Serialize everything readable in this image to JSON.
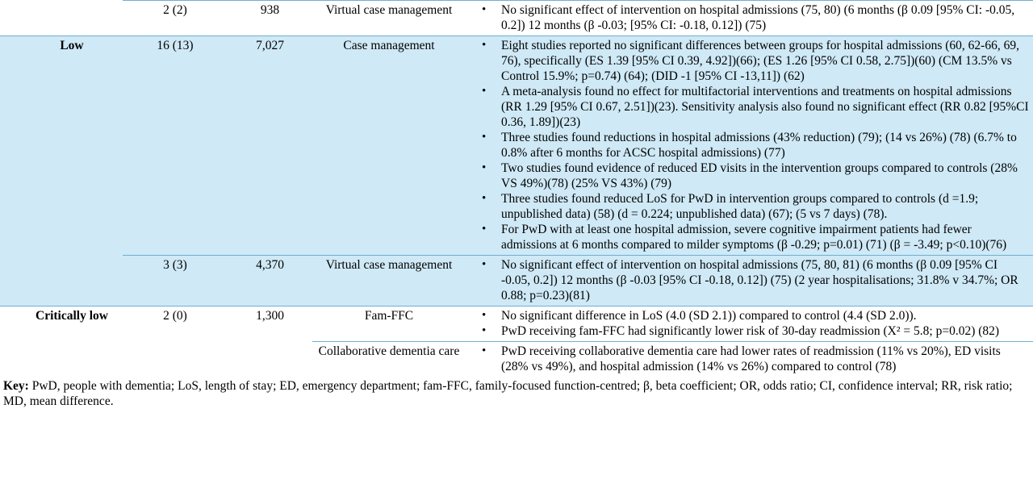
{
  "rows": [
    {
      "certainty": "",
      "studies": "2 (2)",
      "participants": "938",
      "intervention": "Virtual case management",
      "findings": [
        "No significant effect of intervention on hospital admissions (75, 80) (6 months (β 0.09 [95% CI: -0.05, 0.2]) 12 months (β -0.03; [95% CI: -0.18, 0.12]) (75)"
      ]
    },
    {
      "certainty": "Low",
      "studies": "16 (13)",
      "participants": "7,027",
      "intervention": "Case management",
      "findings": [
        "Eight studies reported no significant differences between groups for hospital admissions (60, 62-66, 69, 76), specifically (ES 1.39 [95% CI 0.39, 4.92])(66); (ES 1.26 [95% CI 0.58, 2.75])(60) (CM 13.5% vs Control 15.9%; p=0.74) (64); (DID -1 [95% CI -13,11]) (62)",
        "A meta-analysis found no effect for multifactorial interventions and treatments on hospital admissions (RR 1.29 [95% CI 0.67, 2.51])(23). Sensitivity analysis also found no significant effect (RR 0.82 [95%CI 0.36, 1.89])(23)",
        "Three studies found reductions in hospital admissions (43% reduction) (79); (14 vs 26%) (78) (6.7% to 0.8% after 6 months for ACSC hospital admissions) (77)",
        "Two studies found evidence of reduced ED visits in the intervention groups compared to controls (28% VS 49%)(78) (25% VS 43%) (79)",
        "Three studies found reduced LoS for PwD in intervention groups compared to controls (d =1.9; unpublished data) (58) (d = 0.224; unpublished data) (67); (5 vs 7 days) (78).",
        "For PwD with at least one hospital admission, severe cognitive impairment patients had fewer admissions at 6 months compared to milder symptoms (β -0.29; p=0.01) (71) (β = -3.49; p<0.10)(76)"
      ]
    },
    {
      "certainty": "",
      "studies": "3 (3)",
      "participants": "4,370",
      "intervention": "Virtual case management",
      "findings": [
        "No significant effect of intervention on hospital admissions (75, 80, 81) (6 months (β 0.09 [95% CI -0.05, 0.2]) 12 months (β -0.03 [95% CI -0.18, 0.12]) (75) (2 year hospitalisations; 31.8% v 34.7%; OR 0.88; p=0.23)(81)"
      ]
    },
    {
      "certainty": "Critically low",
      "studies": "2 (0)",
      "participants": "1,300",
      "intervention": "Fam-FFC",
      "findings": [
        "No significant difference in LoS (4.0 (SD 2.1)) compared to control (4.4 (SD 2.0)).",
        "PwD receiving fam-FFC had significantly lower risk of 30-day readmission (X² = 5.8; p=0.02) (82)"
      ]
    },
    {
      "certainty": "",
      "studies": "",
      "participants": "",
      "intervention": "Collaborative dementia care",
      "findings": [
        "PwD receiving collaborative dementia care had lower rates of readmission (11% vs 20%), ED visits (28% vs 49%), and hospital admission (14% vs 26%) compared to control (78)"
      ]
    }
  ],
  "key": {
    "label": "Key:",
    "text": " PwD, people with dementia; LoS, length of stay; ED, emergency department; fam-FFC, family-focused function-centred; β, beta coefficient; OR, odds ratio; CI, confidence interval; RR, risk ratio; MD, mean difference."
  },
  "colors": {
    "shade": "#cfe9f6",
    "rule": "#6fb0d0"
  }
}
